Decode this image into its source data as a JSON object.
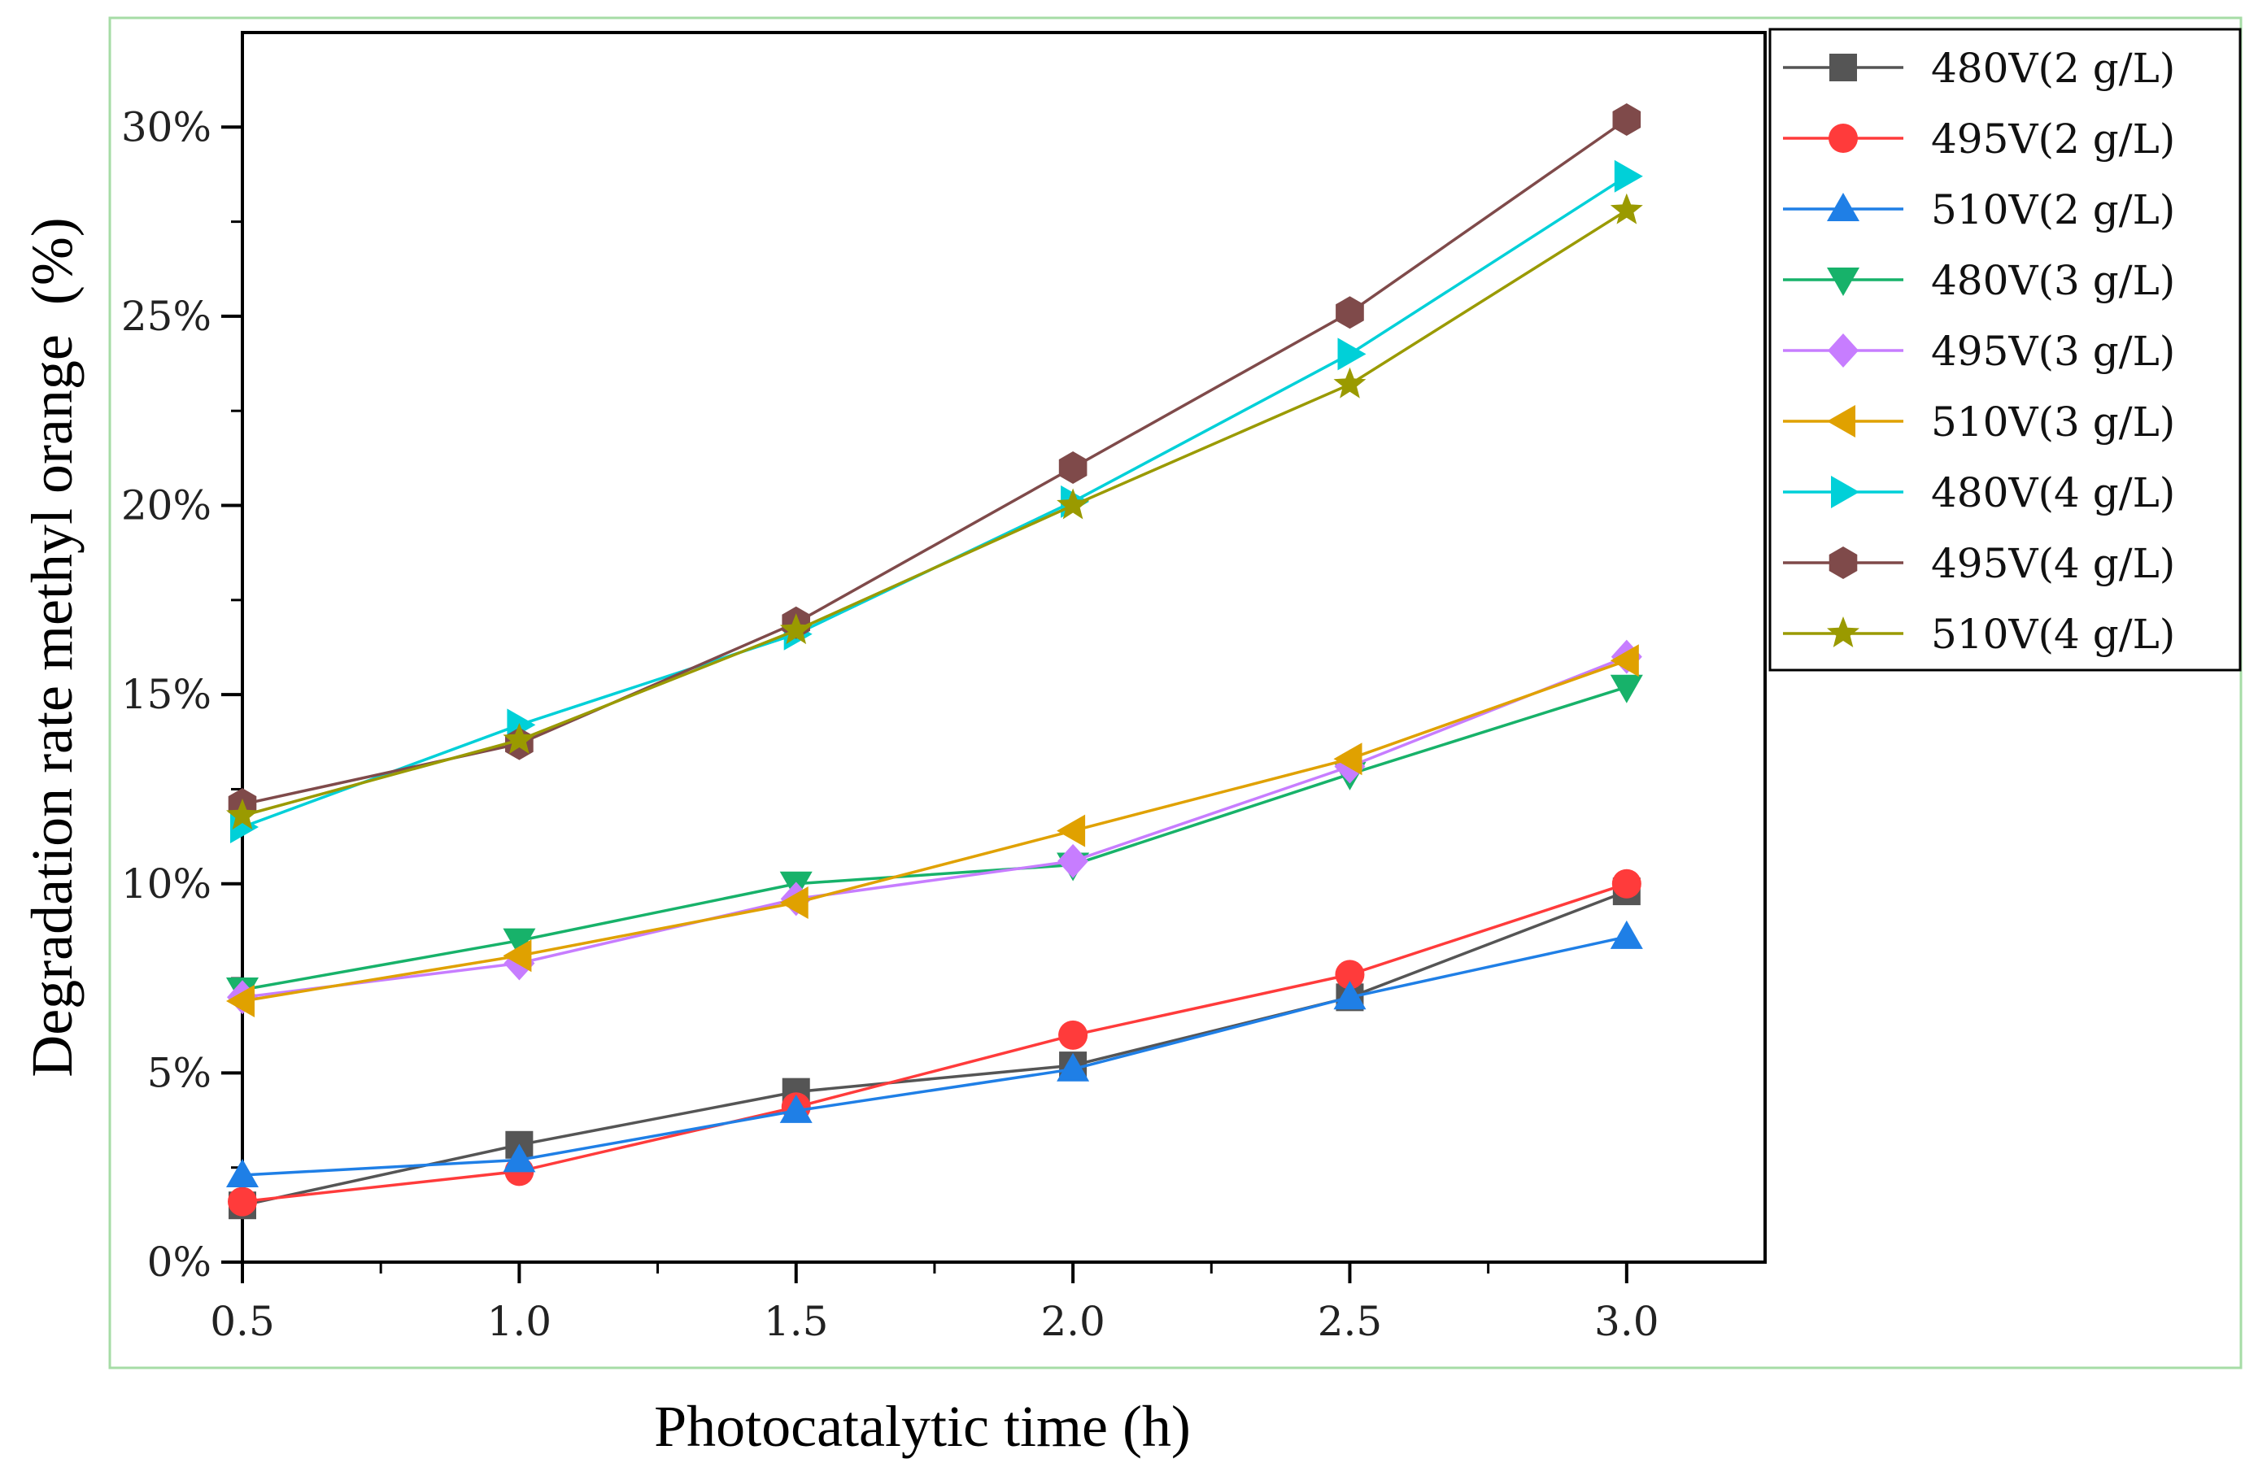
{
  "chart_data": {
    "type": "line",
    "title": "",
    "xlabel": "Photocatalytic time (h)",
    "ylabel": "Degradation rate methyl orange  (%)",
    "x": [
      0.5,
      1.0,
      1.5,
      2.0,
      2.5,
      3.0
    ],
    "xlim": [
      0.5,
      3.25
    ],
    "ylim": [
      0,
      32.5
    ],
    "x_ticks": [
      {
        "value": 0.5,
        "label": "0.5"
      },
      {
        "value": 1.0,
        "label": "1.0"
      },
      {
        "value": 1.5,
        "label": "1.5"
      },
      {
        "value": 2.0,
        "label": "2.0"
      },
      {
        "value": 2.5,
        "label": "2.5"
      },
      {
        "value": 3.0,
        "label": "3.0"
      }
    ],
    "x_minor_ticks": [
      0.75,
      1.25,
      1.75,
      2.25,
      2.75
    ],
    "y_ticks": [
      {
        "value": 0,
        "label": "0%"
      },
      {
        "value": 5,
        "label": "5%"
      },
      {
        "value": 10,
        "label": "10%"
      },
      {
        "value": 15,
        "label": "15%"
      },
      {
        "value": 20,
        "label": "20%"
      },
      {
        "value": 25,
        "label": "25%"
      },
      {
        "value": 30,
        "label": "30%"
      }
    ],
    "y_minor_ticks": [
      2.5,
      7.5,
      12.5,
      17.5,
      22.5,
      27.5
    ],
    "grid": false,
    "legend_position": "top-right outside",
    "series": [
      {
        "name": "480V(2 g/L)",
        "color": "#555555",
        "marker": "square",
        "values": [
          1.5,
          3.1,
          4.5,
          5.2,
          7.0,
          9.8
        ]
      },
      {
        "name": "495V(2 g/L)",
        "color": "#ff3b3b",
        "marker": "circle",
        "values": [
          1.6,
          2.4,
          4.1,
          6.0,
          7.6,
          10.0
        ]
      },
      {
        "name": "510V(2 g/L)",
        "color": "#1f7fe6",
        "marker": "triangle-up",
        "values": [
          2.3,
          2.7,
          4.0,
          5.1,
          7.0,
          8.6
        ]
      },
      {
        "name": "480V(3 g/L)",
        "color": "#17b26a",
        "marker": "triangle-down",
        "values": [
          7.2,
          8.5,
          10.0,
          10.5,
          12.9,
          15.2
        ]
      },
      {
        "name": "495V(3 g/L)",
        "color": "#c77dff",
        "marker": "diamond",
        "values": [
          7.0,
          7.9,
          9.6,
          10.6,
          13.1,
          16.0
        ]
      },
      {
        "name": "510V(3 g/L)",
        "color": "#e0a100",
        "marker": "triangle-left",
        "values": [
          6.9,
          8.1,
          9.5,
          11.4,
          13.3,
          15.9
        ]
      },
      {
        "name": "480V(4 g/L)",
        "color": "#00d0d8",
        "marker": "triangle-right",
        "values": [
          11.5,
          14.2,
          16.6,
          20.1,
          24.0,
          28.7
        ]
      },
      {
        "name": "495V(4 g/L)",
        "color": "#7f4a4a",
        "marker": "hexagon",
        "values": [
          12.1,
          13.7,
          16.9,
          21.0,
          25.1,
          30.2
        ]
      },
      {
        "name": "510V(4 g/L)",
        "color": "#9a9a00",
        "marker": "star",
        "values": [
          11.8,
          13.8,
          16.7,
          20.0,
          23.2,
          27.8
        ]
      }
    ]
  }
}
